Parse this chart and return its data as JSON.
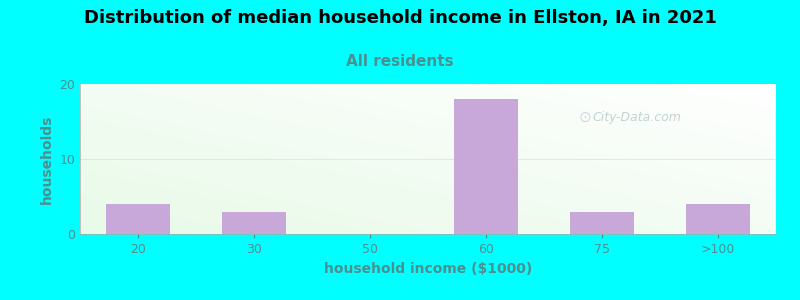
{
  "title": "Distribution of median household income in Ellston, IA in 2021",
  "subtitle": "All residents",
  "xlabel": "household income ($1000)",
  "ylabel": "households",
  "categories": [
    "20",
    "30",
    "50",
    "60",
    "75",
    ">100"
  ],
  "values": [
    4,
    3,
    0,
    18,
    3,
    4
  ],
  "bar_color": "#c8a8d8",
  "background_color": "#00ffff",
  "title_fontsize": 13,
  "subtitle_fontsize": 11,
  "subtitle_color": "#4a9090",
  "ylabel_color": "#4a9090",
  "xlabel_color": "#4a9090",
  "tick_color": "#4a9090",
  "ylim": [
    0,
    20
  ],
  "yticks": [
    0,
    10,
    20
  ],
  "watermark": "City-Data.com",
  "bar_width": 0.55,
  "grid_color": "#dddddd",
  "grid_linewidth": 0.5,
  "plot_bg_green": "#e8f5e0",
  "plot_bg_white": "#f8fff8"
}
